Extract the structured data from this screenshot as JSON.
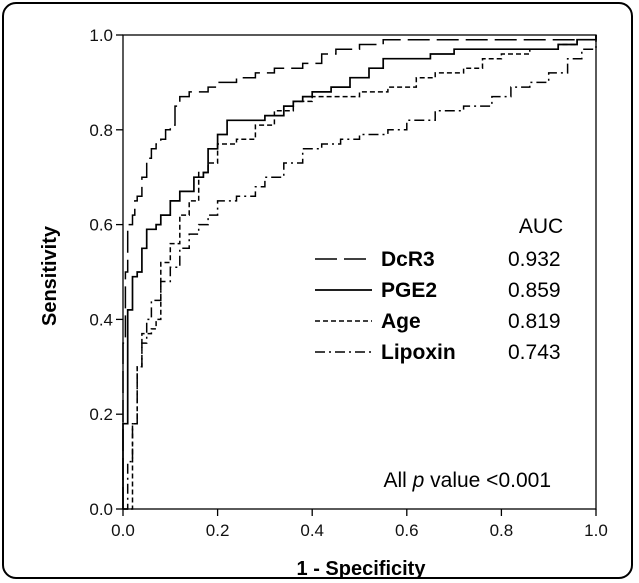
{
  "chart_data": {
    "type": "line",
    "xlabel": "1 - Specificity",
    "ylabel": "Sensitivity",
    "xlim": [
      0,
      1
    ],
    "ylim": [
      0,
      1
    ],
    "xticks": [
      "0.0",
      "0.2",
      "0.4",
      "0.6",
      "0.8",
      "1.0"
    ],
    "yticks": [
      "0.0",
      "0.2",
      "0.4",
      "0.6",
      "0.8",
      "1.0"
    ],
    "legend_header": "AUC",
    "annotation_prefix": "All ",
    "annotation_p": "p",
    "annotation_suffix": " value <0.001",
    "legend_placement": "right-center",
    "series": [
      {
        "name": "DcR3",
        "auc": "0.932",
        "dash": "long-dash",
        "points": [
          [
            0,
            0
          ],
          [
            0,
            0.35
          ],
          [
            0.005,
            0.5
          ],
          [
            0.01,
            0.6
          ],
          [
            0.02,
            0.62
          ],
          [
            0.025,
            0.65
          ],
          [
            0.03,
            0.66
          ],
          [
            0.04,
            0.7
          ],
          [
            0.05,
            0.74
          ],
          [
            0.06,
            0.76
          ],
          [
            0.07,
            0.77
          ],
          [
            0.08,
            0.78
          ],
          [
            0.09,
            0.8
          ],
          [
            0.1,
            0.81
          ],
          [
            0.11,
            0.85
          ],
          [
            0.12,
            0.87
          ],
          [
            0.14,
            0.88
          ],
          [
            0.16,
            0.88
          ],
          [
            0.18,
            0.89
          ],
          [
            0.2,
            0.9
          ],
          [
            0.24,
            0.91
          ],
          [
            0.28,
            0.92
          ],
          [
            0.32,
            0.93
          ],
          [
            0.38,
            0.94
          ],
          [
            0.42,
            0.96
          ],
          [
            0.45,
            0.97
          ],
          [
            0.5,
            0.98
          ],
          [
            0.55,
            0.99
          ],
          [
            0.6,
            0.99
          ],
          [
            0.7,
            0.99
          ],
          [
            0.8,
            0.99
          ],
          [
            0.9,
            0.99
          ],
          [
            0.96,
            0.99
          ],
          [
            1,
            1
          ]
        ]
      },
      {
        "name": "PGE2",
        "auc": "0.859",
        "dash": "solid",
        "points": [
          [
            0,
            0
          ],
          [
            0,
            0.18
          ],
          [
            0.01,
            0.19
          ],
          [
            0.01,
            0.42
          ],
          [
            0.02,
            0.45
          ],
          [
            0.02,
            0.49
          ],
          [
            0.03,
            0.5
          ],
          [
            0.04,
            0.55
          ],
          [
            0.05,
            0.59
          ],
          [
            0.07,
            0.6
          ],
          [
            0.08,
            0.62
          ],
          [
            0.1,
            0.65
          ],
          [
            0.12,
            0.67
          ],
          [
            0.14,
            0.67
          ],
          [
            0.15,
            0.7
          ],
          [
            0.17,
            0.71
          ],
          [
            0.18,
            0.76
          ],
          [
            0.2,
            0.79
          ],
          [
            0.22,
            0.82
          ],
          [
            0.26,
            0.82
          ],
          [
            0.3,
            0.83
          ],
          [
            0.34,
            0.85
          ],
          [
            0.36,
            0.86
          ],
          [
            0.38,
            0.87
          ],
          [
            0.4,
            0.88
          ],
          [
            0.44,
            0.89
          ],
          [
            0.48,
            0.91
          ],
          [
            0.52,
            0.93
          ],
          [
            0.55,
            0.95
          ],
          [
            0.6,
            0.95
          ],
          [
            0.65,
            0.96
          ],
          [
            0.7,
            0.97
          ],
          [
            0.8,
            0.97
          ],
          [
            0.88,
            0.97
          ],
          [
            0.92,
            0.98
          ],
          [
            0.96,
            0.99
          ],
          [
            1,
            1
          ]
        ]
      },
      {
        "name": "Age",
        "auc": "0.819",
        "dash": "short-dash",
        "points": [
          [
            0,
            0
          ],
          [
            0.01,
            0.0
          ],
          [
            0.02,
            0.02
          ],
          [
            0.02,
            0.18
          ],
          [
            0.03,
            0.2
          ],
          [
            0.03,
            0.3
          ],
          [
            0.04,
            0.37
          ],
          [
            0.06,
            0.38
          ],
          [
            0.07,
            0.4
          ],
          [
            0.08,
            0.52
          ],
          [
            0.1,
            0.56
          ],
          [
            0.12,
            0.62
          ],
          [
            0.14,
            0.65
          ],
          [
            0.16,
            0.71
          ],
          [
            0.18,
            0.73
          ],
          [
            0.2,
            0.77
          ],
          [
            0.24,
            0.78
          ],
          [
            0.28,
            0.81
          ],
          [
            0.32,
            0.84
          ],
          [
            0.36,
            0.86
          ],
          [
            0.4,
            0.87
          ],
          [
            0.46,
            0.87
          ],
          [
            0.5,
            0.88
          ],
          [
            0.56,
            0.89
          ],
          [
            0.62,
            0.91
          ],
          [
            0.66,
            0.92
          ],
          [
            0.72,
            0.93
          ],
          [
            0.76,
            0.95
          ],
          [
            0.8,
            0.96
          ],
          [
            0.86,
            0.97
          ],
          [
            0.92,
            0.98
          ],
          [
            0.96,
            0.99
          ],
          [
            1,
            1
          ]
        ]
      },
      {
        "name": "Lipoxin",
        "auc": "0.743",
        "dash": "dash-dot",
        "points": [
          [
            0,
            0
          ],
          [
            0.01,
            0.1
          ],
          [
            0.02,
            0.18
          ],
          [
            0.03,
            0.3
          ],
          [
            0.04,
            0.35
          ],
          [
            0.05,
            0.4
          ],
          [
            0.06,
            0.44
          ],
          [
            0.08,
            0.48
          ],
          [
            0.1,
            0.51
          ],
          [
            0.12,
            0.55
          ],
          [
            0.14,
            0.58
          ],
          [
            0.16,
            0.6
          ],
          [
            0.18,
            0.62
          ],
          [
            0.2,
            0.65
          ],
          [
            0.24,
            0.66
          ],
          [
            0.28,
            0.68
          ],
          [
            0.3,
            0.7
          ],
          [
            0.34,
            0.73
          ],
          [
            0.38,
            0.76
          ],
          [
            0.42,
            0.77
          ],
          [
            0.46,
            0.78
          ],
          [
            0.5,
            0.79
          ],
          [
            0.56,
            0.8
          ],
          [
            0.6,
            0.82
          ],
          [
            0.66,
            0.84
          ],
          [
            0.72,
            0.85
          ],
          [
            0.78,
            0.87
          ],
          [
            0.82,
            0.89
          ],
          [
            0.86,
            0.9
          ],
          [
            0.9,
            0.92
          ],
          [
            0.94,
            0.95
          ],
          [
            0.97,
            0.97
          ],
          [
            1,
            1
          ]
        ]
      }
    ]
  }
}
